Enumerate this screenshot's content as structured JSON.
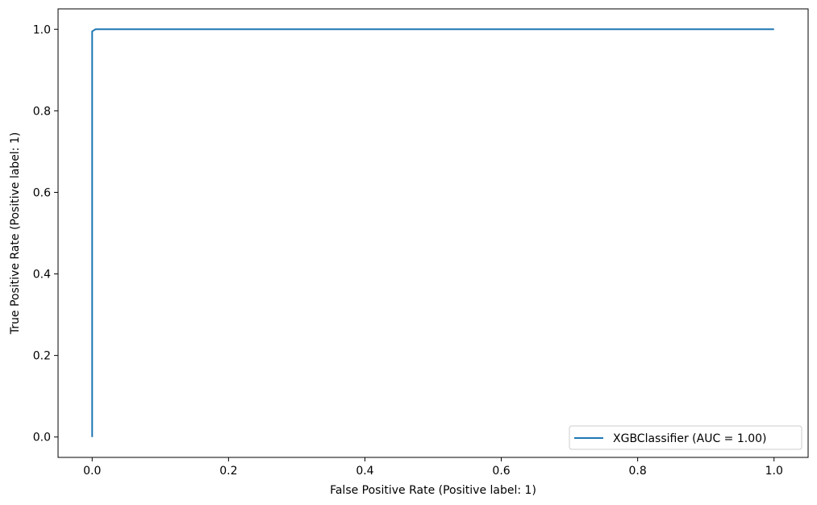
{
  "chart_data": {
    "type": "line",
    "title": "",
    "xlabel": "False Positive Rate (Positive label: 1)",
    "ylabel": "True Positive Rate (Positive label: 1)",
    "xlim": [
      -0.05,
      1.05
    ],
    "ylim": [
      -0.05,
      1.05
    ],
    "xticks": [
      "0.0",
      "0.2",
      "0.4",
      "0.6",
      "0.8",
      "1.0"
    ],
    "yticks": [
      "0.0",
      "0.2",
      "0.4",
      "0.6",
      "0.8",
      "1.0"
    ],
    "grid": false,
    "legend_position": "lower-right",
    "series": [
      {
        "name": "XGBClassifier (AUC = 1.00)",
        "color": "#1f77b4",
        "x": [
          0.0,
          0.0,
          0.005,
          1.0
        ],
        "y": [
          0.0,
          0.995,
          1.0,
          1.0
        ]
      }
    ]
  }
}
